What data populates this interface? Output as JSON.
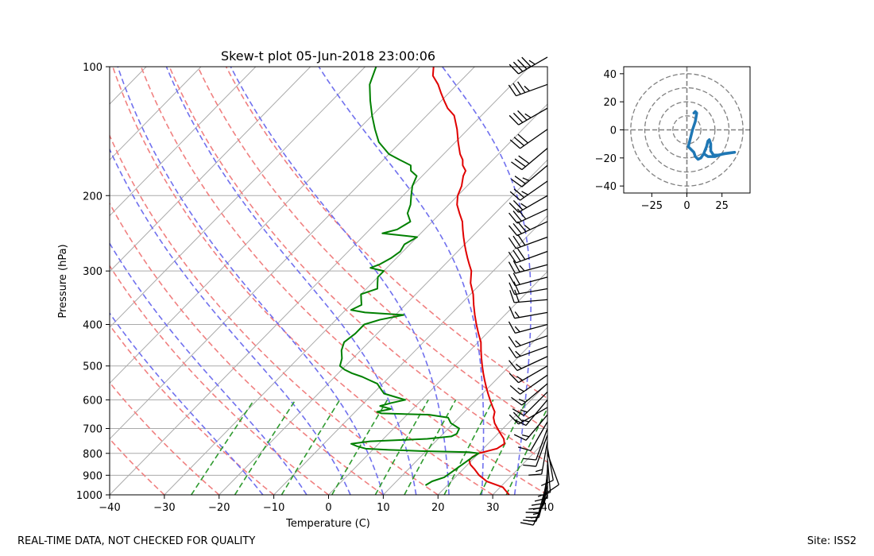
{
  "footer": {
    "left_text": "REAL-TIME DATA, NOT CHECKED FOR QUALITY",
    "right_text": "Site: ISS2"
  },
  "chart_data": [
    {
      "type": "line",
      "chart_kind": "skew-t",
      "title": "Skew-t plot 05-Jun-2018 23:00:06",
      "xlabel": "Temperature (C)",
      "ylabel": "Pressure (hPa)",
      "xlim": [
        -40,
        40
      ],
      "ylim": [
        1000,
        100
      ],
      "y_scale": "log",
      "x_ticks": [
        "−40",
        "−30",
        "−20",
        "−10",
        "0",
        "10",
        "20",
        "30",
        "40"
      ],
      "y_ticks": [
        "100",
        "200",
        "300",
        "400",
        "500",
        "600",
        "700",
        "800",
        "900",
        "1000"
      ],
      "grid": true,
      "colors": {
        "temperature": "#e00000",
        "dewpoint": "#008000",
        "dry_adiabat": "#f08080",
        "moist_adiabat": "#7070ee",
        "mixing_ratio": "#2e9a2e",
        "isotherm": "#aaaaaa"
      },
      "series": [
        {
          "role": "temperature",
          "points": [
            [
              1000,
              33
            ],
            [
              960,
              30.5
            ],
            [
              930,
              26.5
            ],
            [
              900,
              24
            ],
            [
              870,
              22
            ],
            [
              850,
              20.5
            ],
            [
              830,
              19.5
            ],
            [
              815,
              19.5
            ],
            [
              800,
              20
            ],
            [
              780,
              22.5
            ],
            [
              760,
              23
            ],
            [
              740,
              22
            ],
            [
              720,
              20.5
            ],
            [
              700,
              19
            ],
            [
              680,
              17.5
            ],
            [
              660,
              16.3
            ],
            [
              640,
              15.5
            ],
            [
              620,
              14
            ],
            [
              600,
              12.5
            ],
            [
              580,
              11
            ],
            [
              560,
              9.5
            ],
            [
              540,
              8
            ],
            [
              520,
              6.5
            ],
            [
              500,
              5
            ],
            [
              480,
              3.5
            ],
            [
              460,
              2
            ],
            [
              440,
              0.5
            ],
            [
              420,
              -1.5
            ],
            [
              400,
              -3.5
            ],
            [
              380,
              -5.5
            ],
            [
              360,
              -7.5
            ],
            [
              340,
              -9.5
            ],
            [
              320,
              -12
            ],
            [
              300,
              -14
            ],
            [
              290,
              -15.5
            ],
            [
              280,
              -17
            ],
            [
              270,
              -18.5
            ],
            [
              260,
              -20
            ],
            [
              250,
              -21.5
            ],
            [
              240,
              -23
            ],
            [
              230,
              -24.5
            ],
            [
              220,
              -26.5
            ],
            [
              210,
              -28.5
            ],
            [
              200,
              -30
            ],
            [
              190,
              -31
            ],
            [
              180,
              -32.5
            ],
            [
              175,
              -33
            ],
            [
              170,
              -34.5
            ],
            [
              165,
              -35.5
            ],
            [
              160,
              -37
            ],
            [
              150,
              -39.5
            ],
            [
              140,
              -42
            ],
            [
              130,
              -45
            ],
            [
              125,
              -47.5
            ],
            [
              120,
              -49.5
            ],
            [
              115,
              -51.5
            ],
            [
              110,
              -53.5
            ],
            [
              105,
              -56
            ],
            [
              100,
              -57.5
            ]
          ]
        },
        {
          "role": "dewpoint",
          "points": [
            [
              1000,
              null
            ],
            [
              950,
              16
            ],
            [
              930,
              16.5
            ],
            [
              910,
              18
            ],
            [
              880,
              18.5
            ],
            [
              850,
              19
            ],
            [
              820,
              19.5
            ],
            [
              800,
              20
            ],
            [
              795,
              18
            ],
            [
              790,
              9
            ],
            [
              785,
              3
            ],
            [
              780,
              -1.5
            ],
            [
              770,
              -3.5
            ],
            [
              760,
              -5
            ],
            [
              750,
              -2
            ],
            [
              740,
              8
            ],
            [
              730,
              12
            ],
            [
              720,
              12.5
            ],
            [
              700,
              12
            ],
            [
              680,
              9.5
            ],
            [
              660,
              8
            ],
            [
              650,
              4
            ],
            [
              645,
              -5
            ],
            [
              640,
              -6
            ],
            [
              630,
              -4
            ],
            [
              620,
              -6.5
            ],
            [
              610,
              -5
            ],
            [
              600,
              -3
            ],
            [
              590,
              -5.5
            ],
            [
              580,
              -8
            ],
            [
              570,
              -9
            ],
            [
              560,
              -10
            ],
            [
              550,
              -11
            ],
            [
              540,
              -13
            ],
            [
              530,
              -15
            ],
            [
              520,
              -17.5
            ],
            [
              510,
              -19.5
            ],
            [
              500,
              -21
            ],
            [
              480,
              -22
            ],
            [
              460,
              -23.5
            ],
            [
              440,
              -24.5
            ],
            [
              420,
              -24
            ],
            [
              400,
              -24
            ],
            [
              390,
              -22
            ],
            [
              380,
              -18.5
            ],
            [
              375,
              -26
            ],
            [
              370,
              -29
            ],
            [
              360,
              -28
            ],
            [
              350,
              -29
            ],
            [
              340,
              -30
            ],
            [
              330,
              -28
            ],
            [
              320,
              -29
            ],
            [
              310,
              -30
            ],
            [
              300,
              -30
            ],
            [
              295,
              -33
            ],
            [
              290,
              -32
            ],
            [
              280,
              -31
            ],
            [
              270,
              -30.5
            ],
            [
              260,
              -31
            ],
            [
              250,
              -30
            ],
            [
              245,
              -37
            ],
            [
              240,
              -35
            ],
            [
              230,
              -34
            ],
            [
              220,
              -36
            ],
            [
              210,
              -37
            ],
            [
              200,
              -38.5
            ],
            [
              190,
              -40
            ],
            [
              180,
              -41
            ],
            [
              175,
              -43
            ],
            [
              170,
              -44
            ],
            [
              165,
              -47
            ],
            [
              160,
              -50
            ],
            [
              150,
              -54
            ],
            [
              140,
              -57
            ],
            [
              130,
              -60
            ],
            [
              120,
              -63
            ],
            [
              110,
              -66
            ],
            [
              100,
              -68
            ]
          ]
        }
      ],
      "reference_lines": {
        "isotherms_C": [
          -120,
          -110,
          -100,
          -90,
          -80,
          -70,
          -60,
          -50,
          -40,
          -30,
          -20,
          -10,
          0,
          10,
          20,
          30,
          40
        ],
        "dry_adiabats_C": [
          -50,
          -40,
          -30,
          -20,
          -10,
          0,
          10,
          20,
          30,
          40,
          50,
          60,
          70
        ],
        "moist_adiabats_C": [
          -12,
          -4,
          4,
          10,
          16,
          22,
          28,
          34,
          40
        ],
        "mixing_ratios_gkg": [
          0.5,
          1,
          2,
          4,
          7,
          10,
          16,
          24,
          32
        ]
      }
    },
    {
      "type": "line",
      "chart_kind": "hodograph",
      "xlim": [
        -45,
        45
      ],
      "ylim": [
        -45,
        45
      ],
      "x_ticks": [
        "−25",
        "0",
        "25"
      ],
      "y_ticks": [
        "40",
        "20",
        "0",
        "−20",
        "−40"
      ],
      "range_rings": [
        10,
        20,
        30,
        40
      ],
      "color": "#1f77b4",
      "u_v": [
        [
          5,
          12
        ],
        [
          6,
          13
        ],
        [
          7,
          12
        ],
        [
          6,
          6
        ],
        [
          4,
          0
        ],
        [
          2,
          -8
        ],
        [
          1,
          -12
        ],
        [
          3,
          -14
        ],
        [
          5,
          -16
        ],
        [
          6,
          -19
        ],
        [
          8,
          -21
        ],
        [
          10,
          -20
        ],
        [
          12,
          -17
        ],
        [
          14,
          -12
        ],
        [
          15,
          -8
        ],
        [
          16,
          -7
        ],
        [
          17,
          -10
        ],
        [
          17,
          -15
        ],
        [
          19,
          -18
        ],
        [
          22,
          -18
        ],
        [
          27,
          -17
        ],
        [
          34,
          -16
        ],
        [
          26,
          -17
        ],
        [
          20,
          -19
        ],
        [
          15,
          -19
        ],
        [
          12,
          -17
        ]
      ]
    }
  ],
  "wind_barbs": {
    "color": "#000000",
    "levels": [
      [
        95,
        45,
        240
      ],
      [
        110,
        35,
        250
      ],
      [
        125,
        35,
        240
      ],
      [
        140,
        30,
        235
      ],
      [
        155,
        30,
        230
      ],
      [
        170,
        25,
        230
      ],
      [
        185,
        25,
        235
      ],
      [
        200,
        25,
        240
      ],
      [
        215,
        30,
        245
      ],
      [
        230,
        35,
        245
      ],
      [
        250,
        30,
        250
      ],
      [
        270,
        30,
        250
      ],
      [
        290,
        25,
        255
      ],
      [
        310,
        20,
        255
      ],
      [
        330,
        20,
        260
      ],
      [
        350,
        20,
        265
      ],
      [
        375,
        15,
        260
      ],
      [
        400,
        15,
        255
      ],
      [
        425,
        15,
        250
      ],
      [
        450,
        15,
        250
      ],
      [
        475,
        15,
        245
      ],
      [
        500,
        15,
        240
      ],
      [
        525,
        15,
        235
      ],
      [
        550,
        15,
        230
      ],
      [
        575,
        15,
        225
      ],
      [
        600,
        15,
        220
      ],
      [
        625,
        20,
        240
      ],
      [
        650,
        15,
        220
      ],
      [
        675,
        10,
        210
      ],
      [
        700,
        10,
        200
      ],
      [
        725,
        10,
        200
      ],
      [
        750,
        15,
        190
      ],
      [
        775,
        10,
        170
      ],
      [
        800,
        10,
        160
      ],
      [
        825,
        10,
        175
      ],
      [
        850,
        10,
        180
      ],
      [
        875,
        10,
        185
      ],
      [
        900,
        10,
        190
      ],
      [
        925,
        15,
        195
      ],
      [
        950,
        15,
        195
      ],
      [
        975,
        15,
        200
      ],
      [
        1000,
        15,
        205
      ]
    ]
  }
}
